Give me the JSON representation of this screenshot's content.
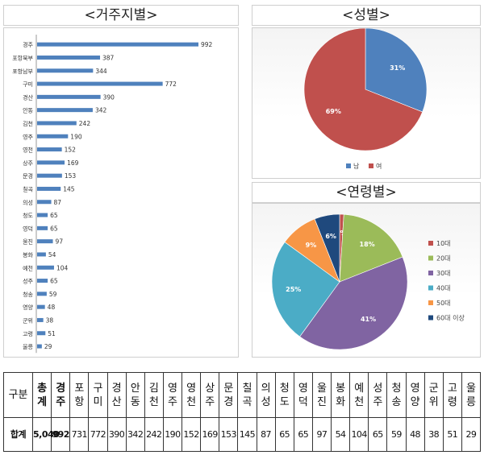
{
  "titles": {
    "residence": "<거주지별>",
    "gender": "<성별>",
    "age": "<연령별>"
  },
  "colors": {
    "bar": "#4f81bd",
    "male": "#4f81bd",
    "female": "#c0504d"
  },
  "chart_data": [
    {
      "type": "bar",
      "orientation": "horizontal",
      "categories": [
        "경주",
        "포항북부",
        "포항남부",
        "구미",
        "경산",
        "안동",
        "김천",
        "영주",
        "영천",
        "상주",
        "문경",
        "칠곡",
        "의성",
        "청도",
        "영덕",
        "울진",
        "봉화",
        "예천",
        "성주",
        "청송",
        "영양",
        "군위",
        "고령",
        "울릉"
      ],
      "values": [
        992,
        387,
        344,
        772,
        390,
        342,
        242,
        190,
        152,
        169,
        153,
        145,
        87,
        65,
        65,
        97,
        54,
        104,
        65,
        59,
        48,
        38,
        51,
        29
      ],
      "grid": false,
      "legend": "none"
    },
    {
      "type": "pie",
      "labels": [
        "남",
        "여"
      ],
      "values": [
        31,
        69
      ],
      "data_labels": [
        "31%",
        "69%"
      ],
      "colors": [
        "#4f81bd",
        "#c0504d"
      ],
      "legend": "bottom"
    },
    {
      "type": "pie",
      "labels": [
        "10대",
        "20대",
        "30대",
        "40대",
        "50대",
        "60대 이상"
      ],
      "values": [
        1,
        18,
        41,
        25,
        9,
        6
      ],
      "data_labels": [
        "1%",
        "18%",
        "41%",
        "25%",
        "9%",
        "6%"
      ],
      "colors": [
        "#c0504d",
        "#9bbb59",
        "#8064a2",
        "#4bacc6",
        "#f79646",
        "#1f497d"
      ],
      "legend": "right"
    }
  ],
  "table": {
    "row_header_label": "구분",
    "columns": [
      "총계",
      "경주",
      "포항",
      "구미",
      "경산",
      "안동",
      "김천",
      "영주",
      "영천",
      "상주",
      "문경",
      "칠곡",
      "의성",
      "청도",
      "영덕",
      "울진",
      "봉화",
      "예천",
      "성주",
      "청송",
      "영양",
      "군위",
      "고령",
      "울릉"
    ],
    "row_label": "합계",
    "values": [
      "5,040",
      "992",
      "731",
      "772",
      "390",
      "342",
      "242",
      "190",
      "152",
      "169",
      "153",
      "145",
      "87",
      "65",
      "65",
      "97",
      "54",
      "104",
      "65",
      "59",
      "48",
      "38",
      "51",
      "29"
    ]
  }
}
